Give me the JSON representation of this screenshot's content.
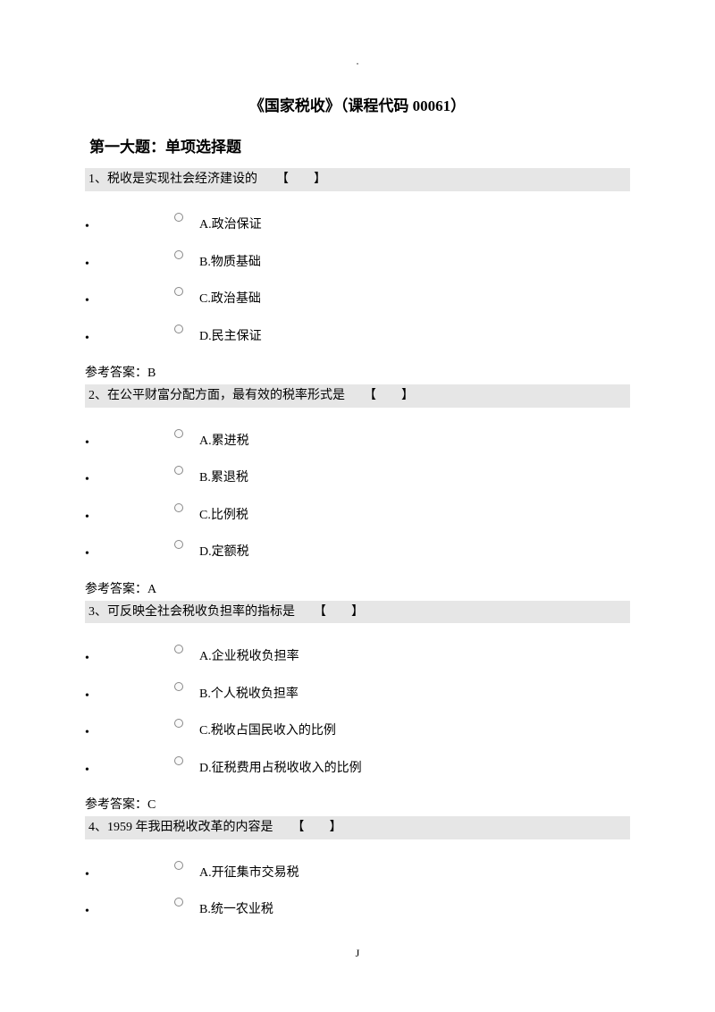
{
  "colors": {
    "page_bg": "#ffffff",
    "text": "#000000",
    "question_bar_bg": "#e6e6e6",
    "radio_border": "#888888"
  },
  "typography": {
    "body_family": "SimSun",
    "body_size_pt": 14,
    "title_size_pt": 17,
    "section_size_pt": 17
  },
  "top_mark": ".",
  "title": "《国家税收》（课程代码 00061）",
  "section_header": "第一大题：单项选择题",
  "bracket": "【　　】",
  "answer_prefix": "参考答案：",
  "page_number": "J",
  "questions": [
    {
      "num": "1、",
      "text": "税收是实现社会经济建设的",
      "options": [
        {
          "label": "A.政治保证"
        },
        {
          "label": "B.物质基础"
        },
        {
          "label": "C.政治基础"
        },
        {
          "label": "D.民主保证"
        }
      ],
      "answer": "B"
    },
    {
      "num": "2、",
      "text": "在公平财富分配方面，最有效的税率形式是",
      "options": [
        {
          "label": "A.累进税"
        },
        {
          "label": "B.累退税"
        },
        {
          "label": "C.比例税"
        },
        {
          "label": "D.定额税"
        }
      ],
      "answer": "A"
    },
    {
      "num": "3、",
      "text": "可反映全社会税收负担率的指标是",
      "options": [
        {
          "label": "A.企业税收负担率"
        },
        {
          "label": "B.个人税收负担率"
        },
        {
          "label": "C.税收占国民收入的比例"
        },
        {
          "label": "D.征税费用占税收收入的比例"
        }
      ],
      "answer": "C"
    },
    {
      "num": "4、",
      "text": "1959 年我田税收改革的内容是",
      "options": [
        {
          "label": "A.开征集市交易税"
        },
        {
          "label": "B.统一农业税"
        }
      ],
      "answer": null
    }
  ]
}
